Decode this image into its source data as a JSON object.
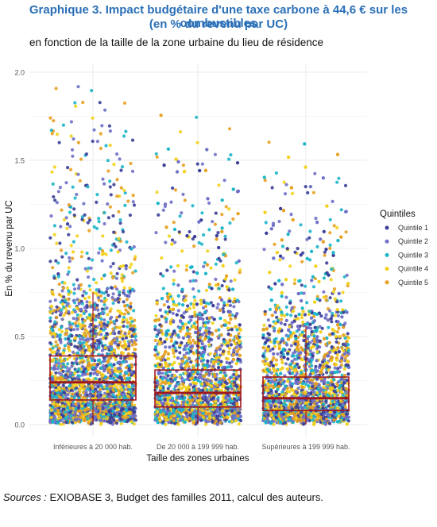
{
  "header": {
    "title_line1": "Graphique 3. Impact budgétaire d'une taxe carbone à 44,6 € sur les combustibles",
    "title_line2": "(en % du revenu par UC)"
  },
  "footer": {
    "source_label": "Sources :",
    "source_text": " EXIOBASE 3, Budget des familles 2011, calcul des auteurs."
  },
  "colors": {
    "title": "#2a6fb7",
    "box": "#a0181e",
    "grid": "#ebebeb"
  },
  "chart_data": {
    "type": "scatter",
    "subtitle": "en fonction de la taille de la zone urbaine du lieu de résidence",
    "xlabel": "Taille des zones urbaines",
    "ylabel": "En % du revenu par UC",
    "categories": [
      "Inférieures à 20 000 hab.",
      "De 20 000 à 199 999 hab.",
      "Supérieures à 199 999 hab."
    ],
    "ylim": [
      0,
      2
    ],
    "yticks": [
      0.0,
      0.5,
      1.0,
      1.5,
      2.0
    ],
    "ytick_labels": [
      "0.0",
      "0.5",
      "1.0",
      "1.5",
      "2.0"
    ],
    "grid": true,
    "legend": {
      "title": "Quintiles",
      "position": "right",
      "entries": [
        {
          "name": "Quintile 1",
          "color": "#3b3f98"
        },
        {
          "name": "Quintile 2",
          "color": "#7070c8"
        },
        {
          "name": "Quintile 3",
          "color": "#1bb6c9"
        },
        {
          "name": "Quintile 4",
          "color": "#f3d21c"
        },
        {
          "name": "Quintile 5",
          "color": "#e8a020"
        }
      ]
    },
    "boxplots": [
      {
        "category": "Inférieures à 20 000 hab.",
        "whisker_low": 0.0,
        "q1": 0.14,
        "median": 0.24,
        "q3": 0.39,
        "whisker_high": 0.75
      },
      {
        "category": "De 20 000 à 199 999 hab.",
        "whisker_low": 0.0,
        "q1": 0.1,
        "median": 0.18,
        "q3": 0.31,
        "whisker_high": 0.62
      },
      {
        "category": "Supérieures à 199 999 hab.",
        "whisker_low": 0.0,
        "q1": 0.08,
        "median": 0.15,
        "q3": 0.27,
        "whisker_high": 0.56
      }
    ],
    "points_per_group": 2500,
    "jitter": "random per observation, visually dense near 0 and sparse above 1.0"
  }
}
